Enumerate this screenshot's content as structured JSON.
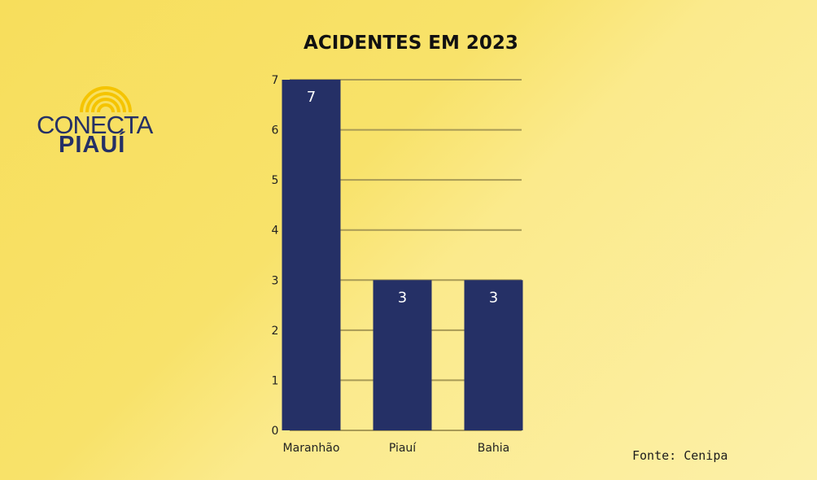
{
  "logo": {
    "line1": "CONECTA",
    "line2": "PIAUÍ",
    "icon": "sun-rays-icon",
    "colors": {
      "rays": "#f5c400",
      "text": "#253066"
    }
  },
  "source": "Fonte: Cenipa",
  "colors": {
    "bar": "#253066",
    "grid": "#a89a56",
    "value_label": "#ffffff"
  },
  "chart_data": {
    "type": "bar",
    "title": "ACIDENTES EM 2023",
    "categories": [
      "Maranhão",
      "Piauí",
      "Bahia"
    ],
    "values": [
      7,
      3,
      3
    ],
    "xlabel": "",
    "ylabel": "",
    "ylim": [
      0,
      7
    ],
    "yticks": [
      0,
      1,
      2,
      3,
      4,
      5,
      6,
      7
    ],
    "grid": true,
    "legend": "none",
    "data_labels": true
  }
}
